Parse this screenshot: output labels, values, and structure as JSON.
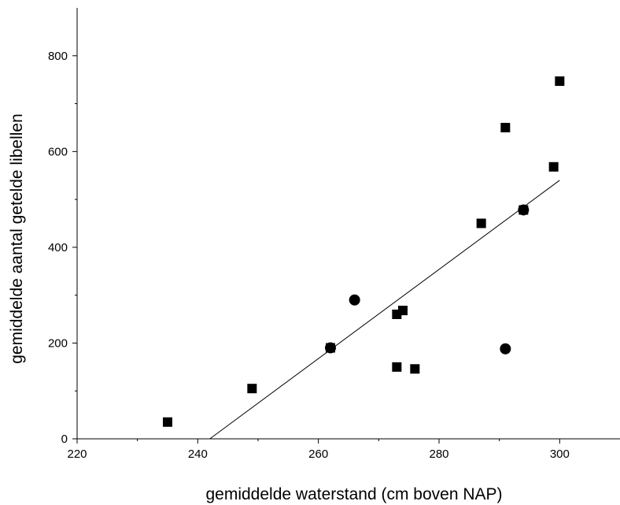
{
  "chart_data": {
    "type": "scatter",
    "title": "",
    "xlabel": "gemiddelde waterstand (cm boven NAP)",
    "ylabel": "gemiddelde aantal getelde libellen",
    "xlim": [
      220,
      310
    ],
    "ylim": [
      0,
      900
    ],
    "x_ticks": [
      "220",
      "240",
      "260",
      "280",
      "300"
    ],
    "y_ticks": [
      "0",
      "200",
      "400",
      "600",
      "800"
    ],
    "grid": false,
    "legend": "none",
    "series": [
      {
        "marker": "square",
        "color": "#000000",
        "points": [
          {
            "x": 235,
            "y": 35
          },
          {
            "x": 249,
            "y": 105
          },
          {
            "x": 262,
            "y": 190
          },
          {
            "x": 273,
            "y": 260
          },
          {
            "x": 274,
            "y": 268
          },
          {
            "x": 273,
            "y": 150
          },
          {
            "x": 276,
            "y": 146
          },
          {
            "x": 287,
            "y": 450
          },
          {
            "x": 291,
            "y": 650
          },
          {
            "x": 294,
            "y": 478
          },
          {
            "x": 299,
            "y": 568
          },
          {
            "x": 300,
            "y": 747
          }
        ]
      },
      {
        "marker": "circle",
        "color": "#000000",
        "points": [
          {
            "x": 266,
            "y": 290
          },
          {
            "x": 291,
            "y": 188
          },
          {
            "x": 262,
            "y": 190
          },
          {
            "x": 294,
            "y": 478
          }
        ]
      }
    ],
    "fit_line": {
      "x": [
        242,
        300
      ],
      "y": [
        0,
        540
      ],
      "color": "#000000"
    }
  }
}
